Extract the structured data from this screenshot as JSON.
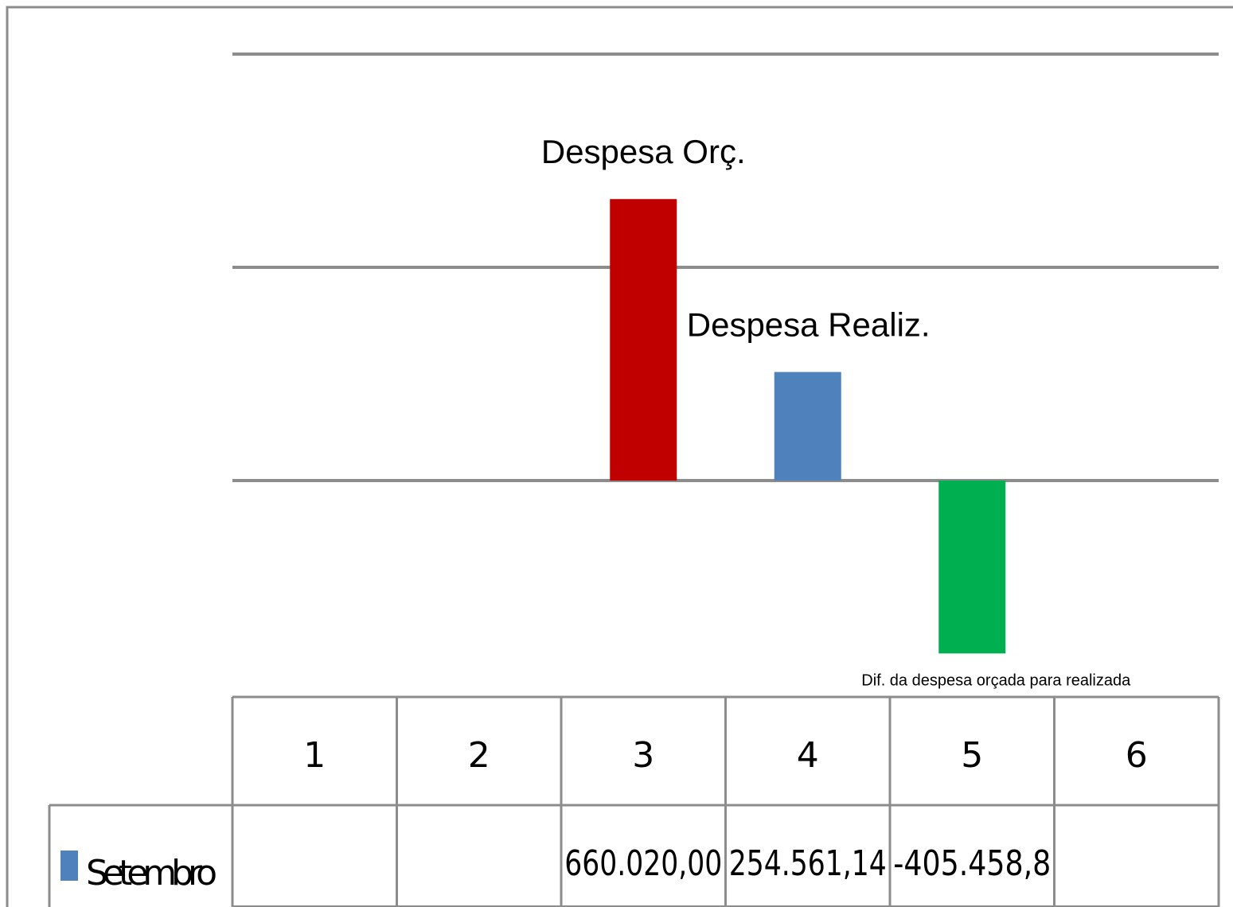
{
  "chart_data": {
    "type": "bar",
    "categories": [
      "1",
      "2",
      "3",
      "4",
      "5",
      "6"
    ],
    "series": [
      {
        "name": "Setembro",
        "values": [
          null,
          null,
          660020.0,
          254561.14,
          -405458.8,
          null
        ],
        "value_labels": [
          "",
          "",
          "660.020,00",
          "254.561,14",
          "-405.458,8",
          ""
        ],
        "bar_colors": [
          "",
          "",
          "#c00000",
          "#4f81bd",
          "#00b050",
          ""
        ],
        "legend_color": "#4f81bd"
      }
    ],
    "annotations": [
      {
        "text": "Despesa Orç.",
        "category_index": 2
      },
      {
        "text": "Despesa Realiz.",
        "category_index": 3
      },
      {
        "text": "Dif. da despesa orçada para realizada",
        "category_index": 4
      }
    ],
    "ylim": [
      -1000000,
      1000000
    ],
    "yticks": [
      -1000000,
      0,
      500000,
      1000000
    ],
    "grid": true,
    "title": "",
    "xlabel": "",
    "ylabel": "",
    "data_table": true
  },
  "colors": {
    "gridline": "#8c8c8c",
    "border": "#8c8c8c",
    "table_border": "#8c8c8c"
  }
}
